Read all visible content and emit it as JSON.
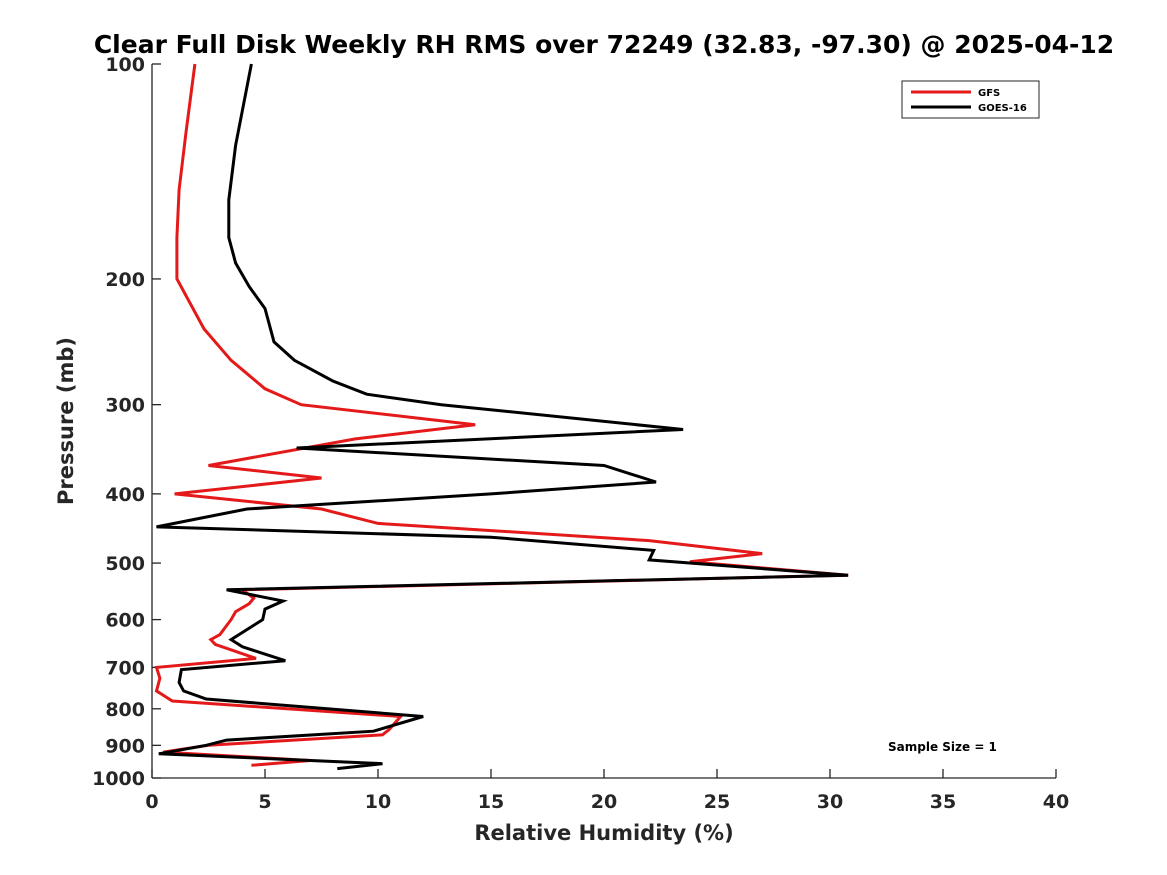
{
  "chart_data": {
    "type": "line",
    "title": "Clear Full Disk Weekly RH RMS over 72249 (32.83, -97.30) @ 2025-04-12",
    "xlabel": "Relative Humidity (%)",
    "ylabel": "Pressure (mb)",
    "xlim": [
      0,
      40
    ],
    "ylim": [
      100,
      1000
    ],
    "yscale": "log",
    "y_reversed": true,
    "grid": false,
    "legend_position": "top-right",
    "x_ticks": [
      0,
      5,
      10,
      15,
      20,
      25,
      30,
      35,
      40
    ],
    "y_ticks": [
      100,
      200,
      300,
      400,
      500,
      600,
      700,
      800,
      900,
      1000
    ],
    "x_tick_labels": [
      "0",
      "5",
      "10",
      "15",
      "20",
      "25",
      "30",
      "35",
      "40"
    ],
    "y_tick_labels": [
      "100",
      "200",
      "300",
      "400",
      "500",
      "600",
      "700",
      "800",
      "900",
      "1000"
    ],
    "annotation": "Sample Size = 1",
    "series": [
      {
        "name": "GFS",
        "color": "#e41a1a",
        "points": [
          [
            1.9,
            100
          ],
          [
            1.5,
            125
          ],
          [
            1.2,
            150
          ],
          [
            1.1,
            175
          ],
          [
            1.1,
            200
          ],
          [
            2.3,
            235
          ],
          [
            3.5,
            260
          ],
          [
            5.0,
            285
          ],
          [
            6.6,
            300
          ],
          [
            14.3,
            320
          ],
          [
            9.0,
            335
          ],
          [
            2.5,
            365
          ],
          [
            7.5,
            380
          ],
          [
            1.0,
            400
          ],
          [
            7.5,
            420
          ],
          [
            10.0,
            440
          ],
          [
            22.0,
            465
          ],
          [
            27.0,
            485
          ],
          [
            23.8,
            498
          ],
          [
            30.8,
            520
          ],
          [
            4.0,
            545
          ],
          [
            4.5,
            560
          ],
          [
            4.3,
            570
          ],
          [
            3.7,
            585
          ],
          [
            3.5,
            600
          ],
          [
            3.0,
            630
          ],
          [
            2.6,
            640
          ],
          [
            2.8,
            650
          ],
          [
            4.6,
            680
          ],
          [
            0.2,
            700
          ],
          [
            0.35,
            725
          ],
          [
            0.2,
            755
          ],
          [
            0.9,
            780
          ],
          [
            11.0,
            820
          ],
          [
            10.5,
            855
          ],
          [
            10.2,
            870
          ],
          [
            2.5,
            900
          ],
          [
            0.5,
            920
          ],
          [
            7.0,
            945
          ],
          [
            4.4,
            960
          ]
        ]
      },
      {
        "name": "GOES-16",
        "color": "#000000",
        "points": [
          [
            4.4,
            100
          ],
          [
            3.7,
            130
          ],
          [
            3.4,
            155
          ],
          [
            3.4,
            175
          ],
          [
            3.7,
            190
          ],
          [
            4.3,
            205
          ],
          [
            5.0,
            220
          ],
          [
            5.4,
            245
          ],
          [
            6.3,
            260
          ],
          [
            8.0,
            278
          ],
          [
            9.5,
            290
          ],
          [
            12.8,
            300
          ],
          [
            23.5,
            325
          ],
          [
            6.4,
            345
          ],
          [
            20.0,
            365
          ],
          [
            22.3,
            385
          ],
          [
            15.0,
            400
          ],
          [
            4.2,
            420
          ],
          [
            0.2,
            445
          ],
          [
            15.0,
            460
          ],
          [
            22.2,
            480
          ],
          [
            22.0,
            495
          ],
          [
            30.8,
            520
          ],
          [
            3.3,
            545
          ],
          [
            5.8,
            565
          ],
          [
            5.0,
            580
          ],
          [
            4.9,
            600
          ],
          [
            3.5,
            640
          ],
          [
            4.0,
            655
          ],
          [
            5.9,
            685
          ],
          [
            1.3,
            705
          ],
          [
            1.2,
            735
          ],
          [
            1.4,
            755
          ],
          [
            2.4,
            775
          ],
          [
            12.0,
            820
          ],
          [
            9.8,
            860
          ],
          [
            3.3,
            885
          ],
          [
            2.4,
            900
          ],
          [
            0.3,
            925
          ],
          [
            10.2,
            955
          ],
          [
            8.2,
            970
          ]
        ]
      }
    ]
  }
}
